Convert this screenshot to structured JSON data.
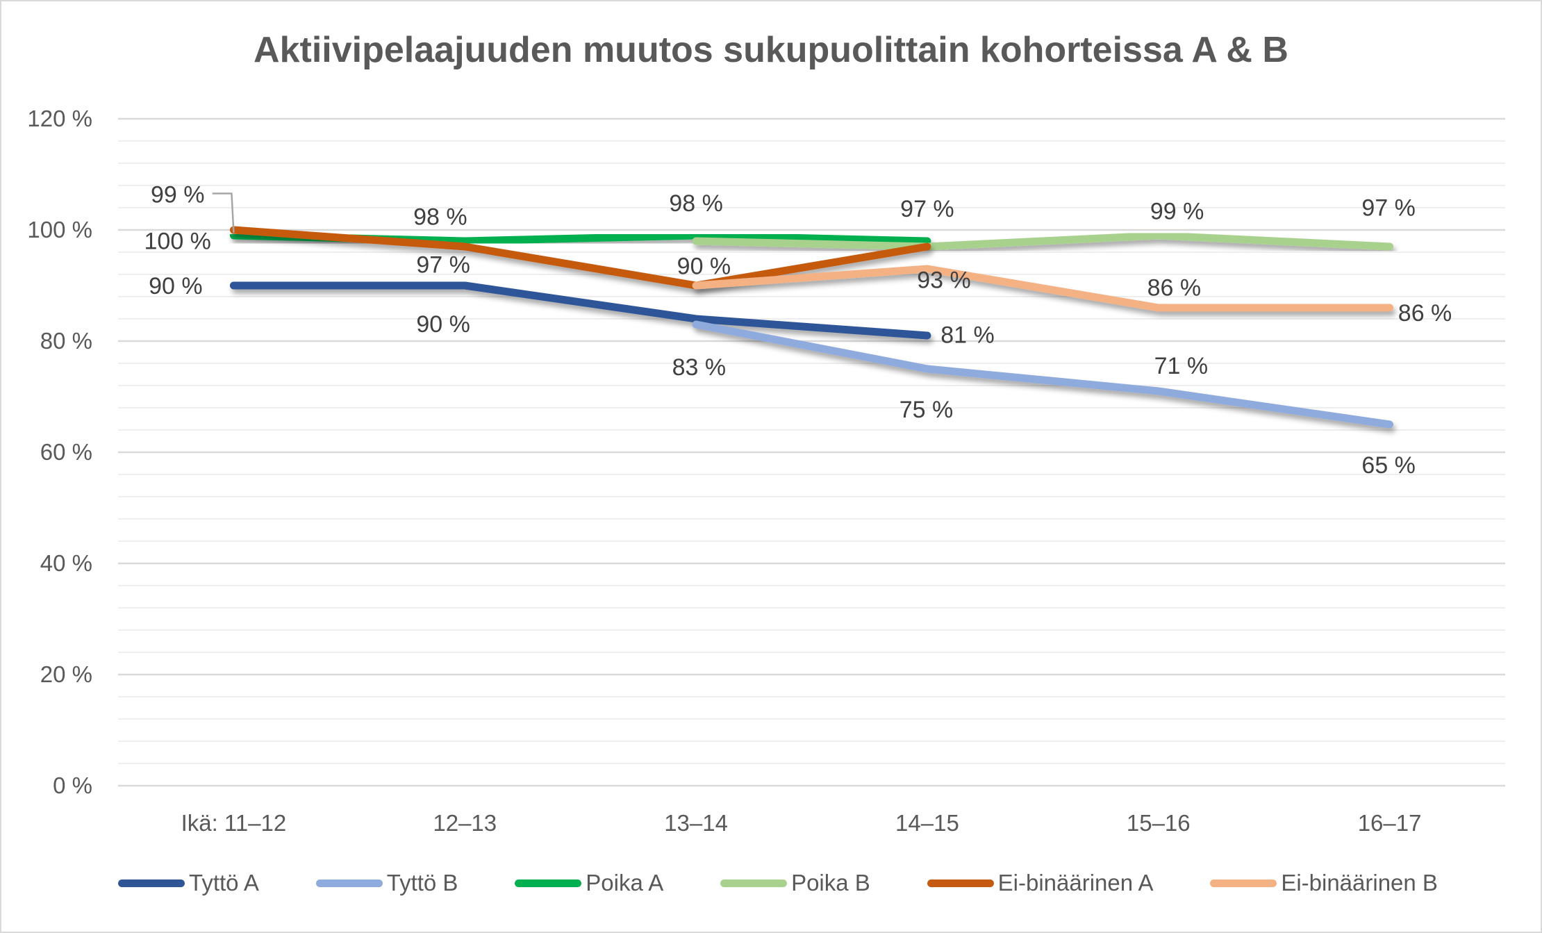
{
  "chart_data": {
    "type": "line",
    "title": "Aktiivipelaajuuden muutos sukupuolittain kohorteissa A & B",
    "categories": [
      "Ikä: 11–12",
      "12–13",
      "13–14",
      "14–15",
      "15–16",
      "16–17"
    ],
    "ylim": [
      0,
      120
    ],
    "yticks": [
      0,
      20,
      40,
      60,
      80,
      100,
      120
    ],
    "ytick_labels": [
      "0 %",
      "20 %",
      "40 %",
      "60 %",
      "80 %",
      "100 %",
      "120 %"
    ],
    "grid": true,
    "legend": "bottom",
    "series": [
      {
        "name": "Tyttö A",
        "color": "#2F5597",
        "values": [
          90,
          90,
          84,
          81,
          null,
          null
        ],
        "labels": [
          "90 %",
          "90 %",
          null,
          "81 %",
          null,
          null
        ]
      },
      {
        "name": "Tyttö B",
        "color": "#8FAADC",
        "values": [
          null,
          null,
          83,
          75,
          71,
          65
        ],
        "labels": [
          null,
          null,
          "83 %",
          "75 %",
          "71 %",
          "65 %"
        ]
      },
      {
        "name": "Poika A",
        "color": "#00B050",
        "values": [
          99,
          98,
          99,
          98,
          null,
          null
        ],
        "labels": [
          "99 %",
          "98 %",
          null,
          null,
          null,
          null
        ]
      },
      {
        "name": "Poika B",
        "color": "#A9D18E",
        "values": [
          null,
          null,
          98,
          97,
          99,
          97
        ],
        "labels": [
          null,
          null,
          "98 %",
          "97 %",
          "99 %",
          "97 %"
        ]
      },
      {
        "name": "Ei-binäärinen A",
        "color": "#C55A11",
        "values": [
          100,
          97,
          90,
          97,
          null,
          null
        ],
        "labels": [
          "100 %",
          "97 %",
          null,
          null,
          null,
          null
        ]
      },
      {
        "name": "Ei-binäärinen B",
        "color": "#F4B183",
        "values": [
          null,
          null,
          90,
          93,
          86,
          86
        ],
        "labels": [
          null,
          null,
          "90 %",
          "93 %",
          "86 %",
          "86 %"
        ]
      }
    ]
  }
}
